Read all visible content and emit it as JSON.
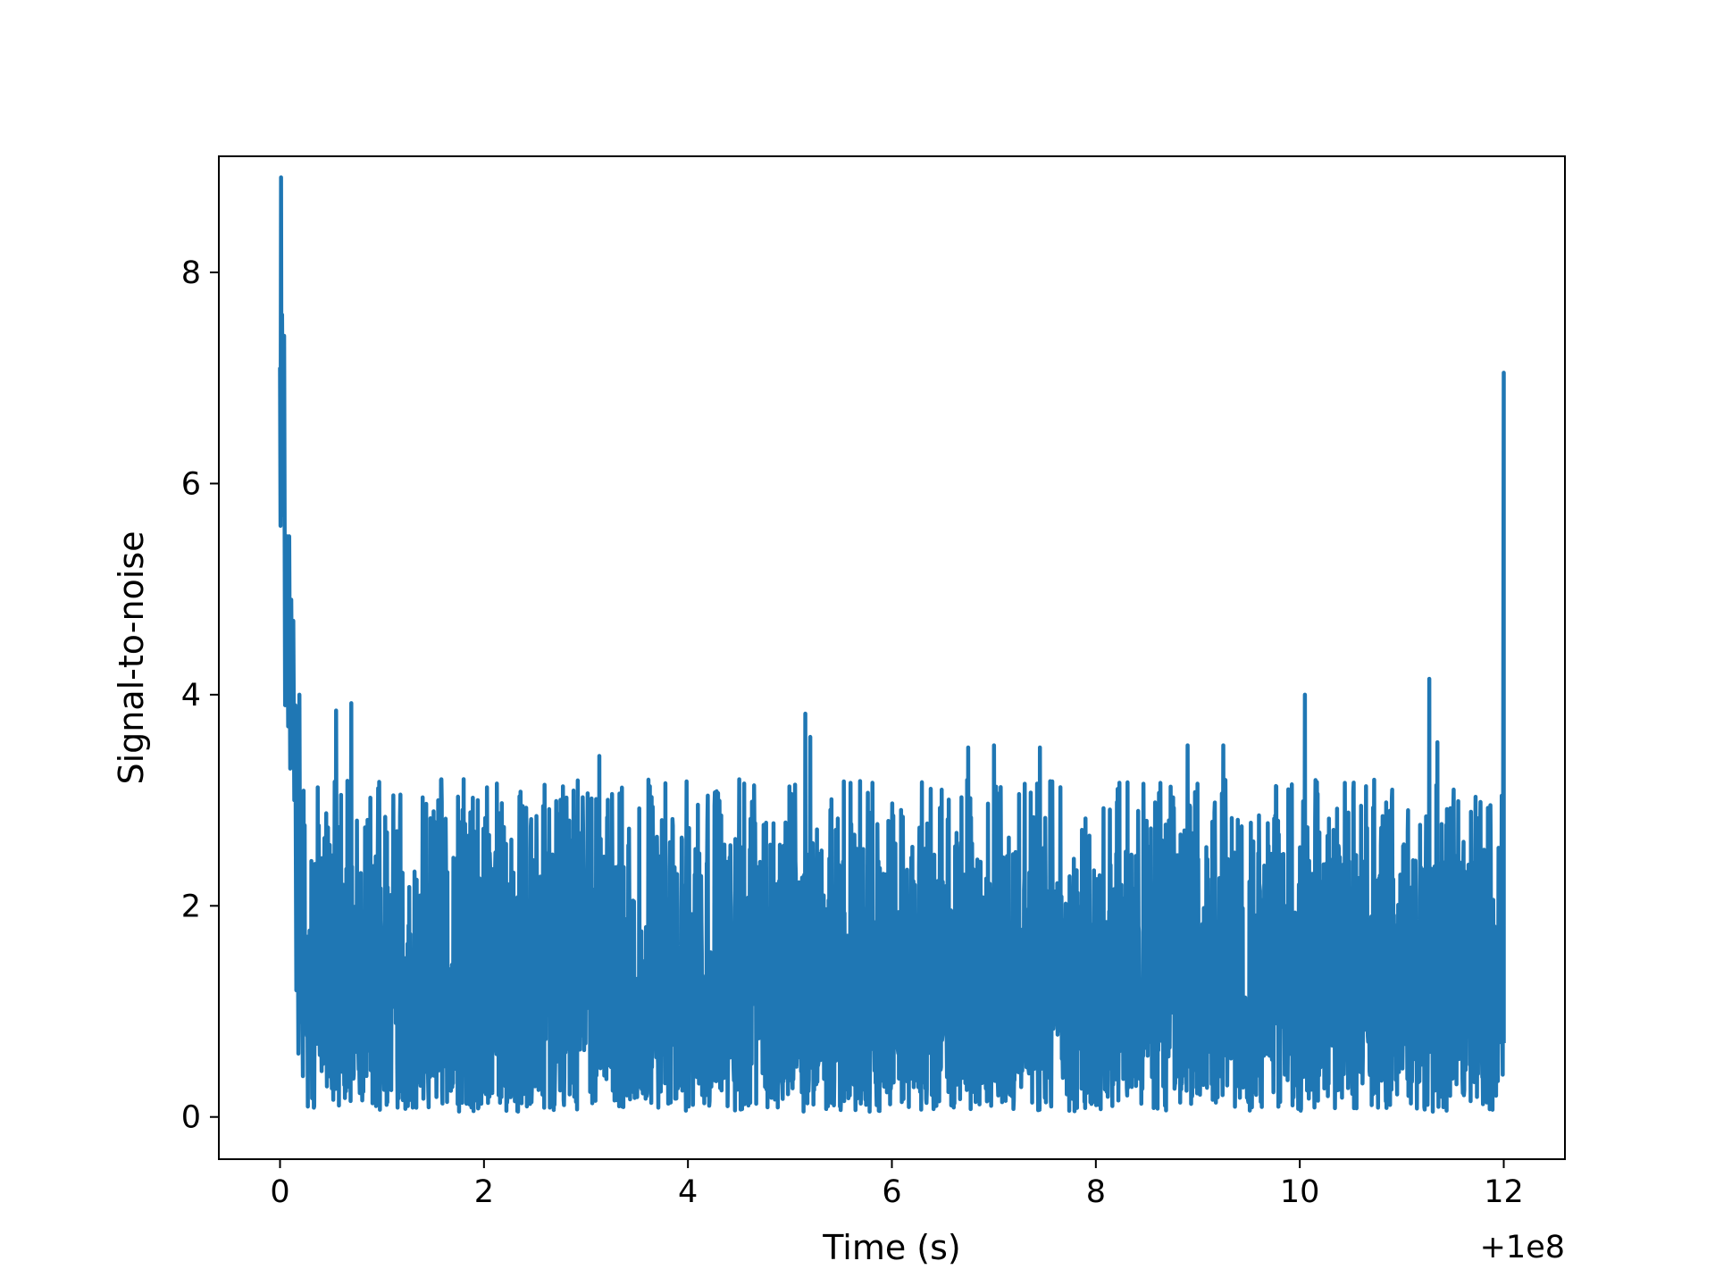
{
  "chart_data": {
    "type": "line",
    "title": "",
    "xlabel": "Time (s)",
    "ylabel": "Signal-to-noise",
    "x_offset_label": "+1e8",
    "xlim": [
      -0.6,
      12.6
    ],
    "ylim": [
      -0.4,
      9.1
    ],
    "xticks": [
      0,
      2,
      4,
      6,
      8,
      10,
      12
    ],
    "xtick_labels": [
      "0",
      "2",
      "4",
      "6",
      "8",
      "10",
      "12"
    ],
    "yticks": [
      0,
      2,
      4,
      6,
      8
    ],
    "ytick_labels": [
      "0",
      "2",
      "4",
      "6",
      "8"
    ],
    "grid": false,
    "line_color": "#1f77b4",
    "x_range": [
      0,
      12
    ],
    "initial_values": [
      [
        0.0,
        7.1
      ],
      [
        0.005,
        5.6
      ],
      [
        0.01,
        8.9
      ],
      [
        0.015,
        6.0
      ],
      [
        0.02,
        7.6
      ],
      [
        0.03,
        5.7
      ],
      [
        0.04,
        7.4
      ],
      [
        0.05,
        3.9
      ],
      [
        0.07,
        5.5
      ],
      [
        0.08,
        3.7
      ],
      [
        0.09,
        5.5
      ],
      [
        0.1,
        3.3
      ],
      [
        0.11,
        4.9
      ],
      [
        0.12,
        3.4
      ],
      [
        0.13,
        4.7
      ],
      [
        0.14,
        3.0
      ],
      [
        0.15,
        3.9
      ],
      [
        0.16,
        1.2
      ],
      [
        0.17,
        3.2
      ],
      [
        0.18,
        0.6
      ],
      [
        0.19,
        4.0
      ],
      [
        0.2,
        0.9
      ]
    ],
    "noise_baseline": 1.1,
    "noise_min": 0.05,
    "noise_max_typical": 2.5,
    "notable_peaks": [
      [
        0.55,
        3.85
      ],
      [
        0.7,
        3.92
      ],
      [
        1.55,
        3.0
      ],
      [
        1.8,
        3.2
      ],
      [
        3.13,
        3.42
      ],
      [
        5.15,
        3.82
      ],
      [
        5.2,
        3.6
      ],
      [
        6.75,
        3.5
      ],
      [
        7.0,
        3.52
      ],
      [
        7.45,
        3.5
      ],
      [
        8.9,
        3.52
      ],
      [
        9.25,
        3.52
      ],
      [
        10.05,
        4.0
      ],
      [
        11.27,
        4.15
      ],
      [
        11.35,
        3.55
      ],
      [
        12.0,
        7.05
      ]
    ],
    "final_values": [
      [
        11.98,
        1.9
      ],
      [
        11.99,
        0.4
      ],
      [
        12.0,
        7.05
      ],
      [
        12.0,
        0.7
      ]
    ]
  }
}
